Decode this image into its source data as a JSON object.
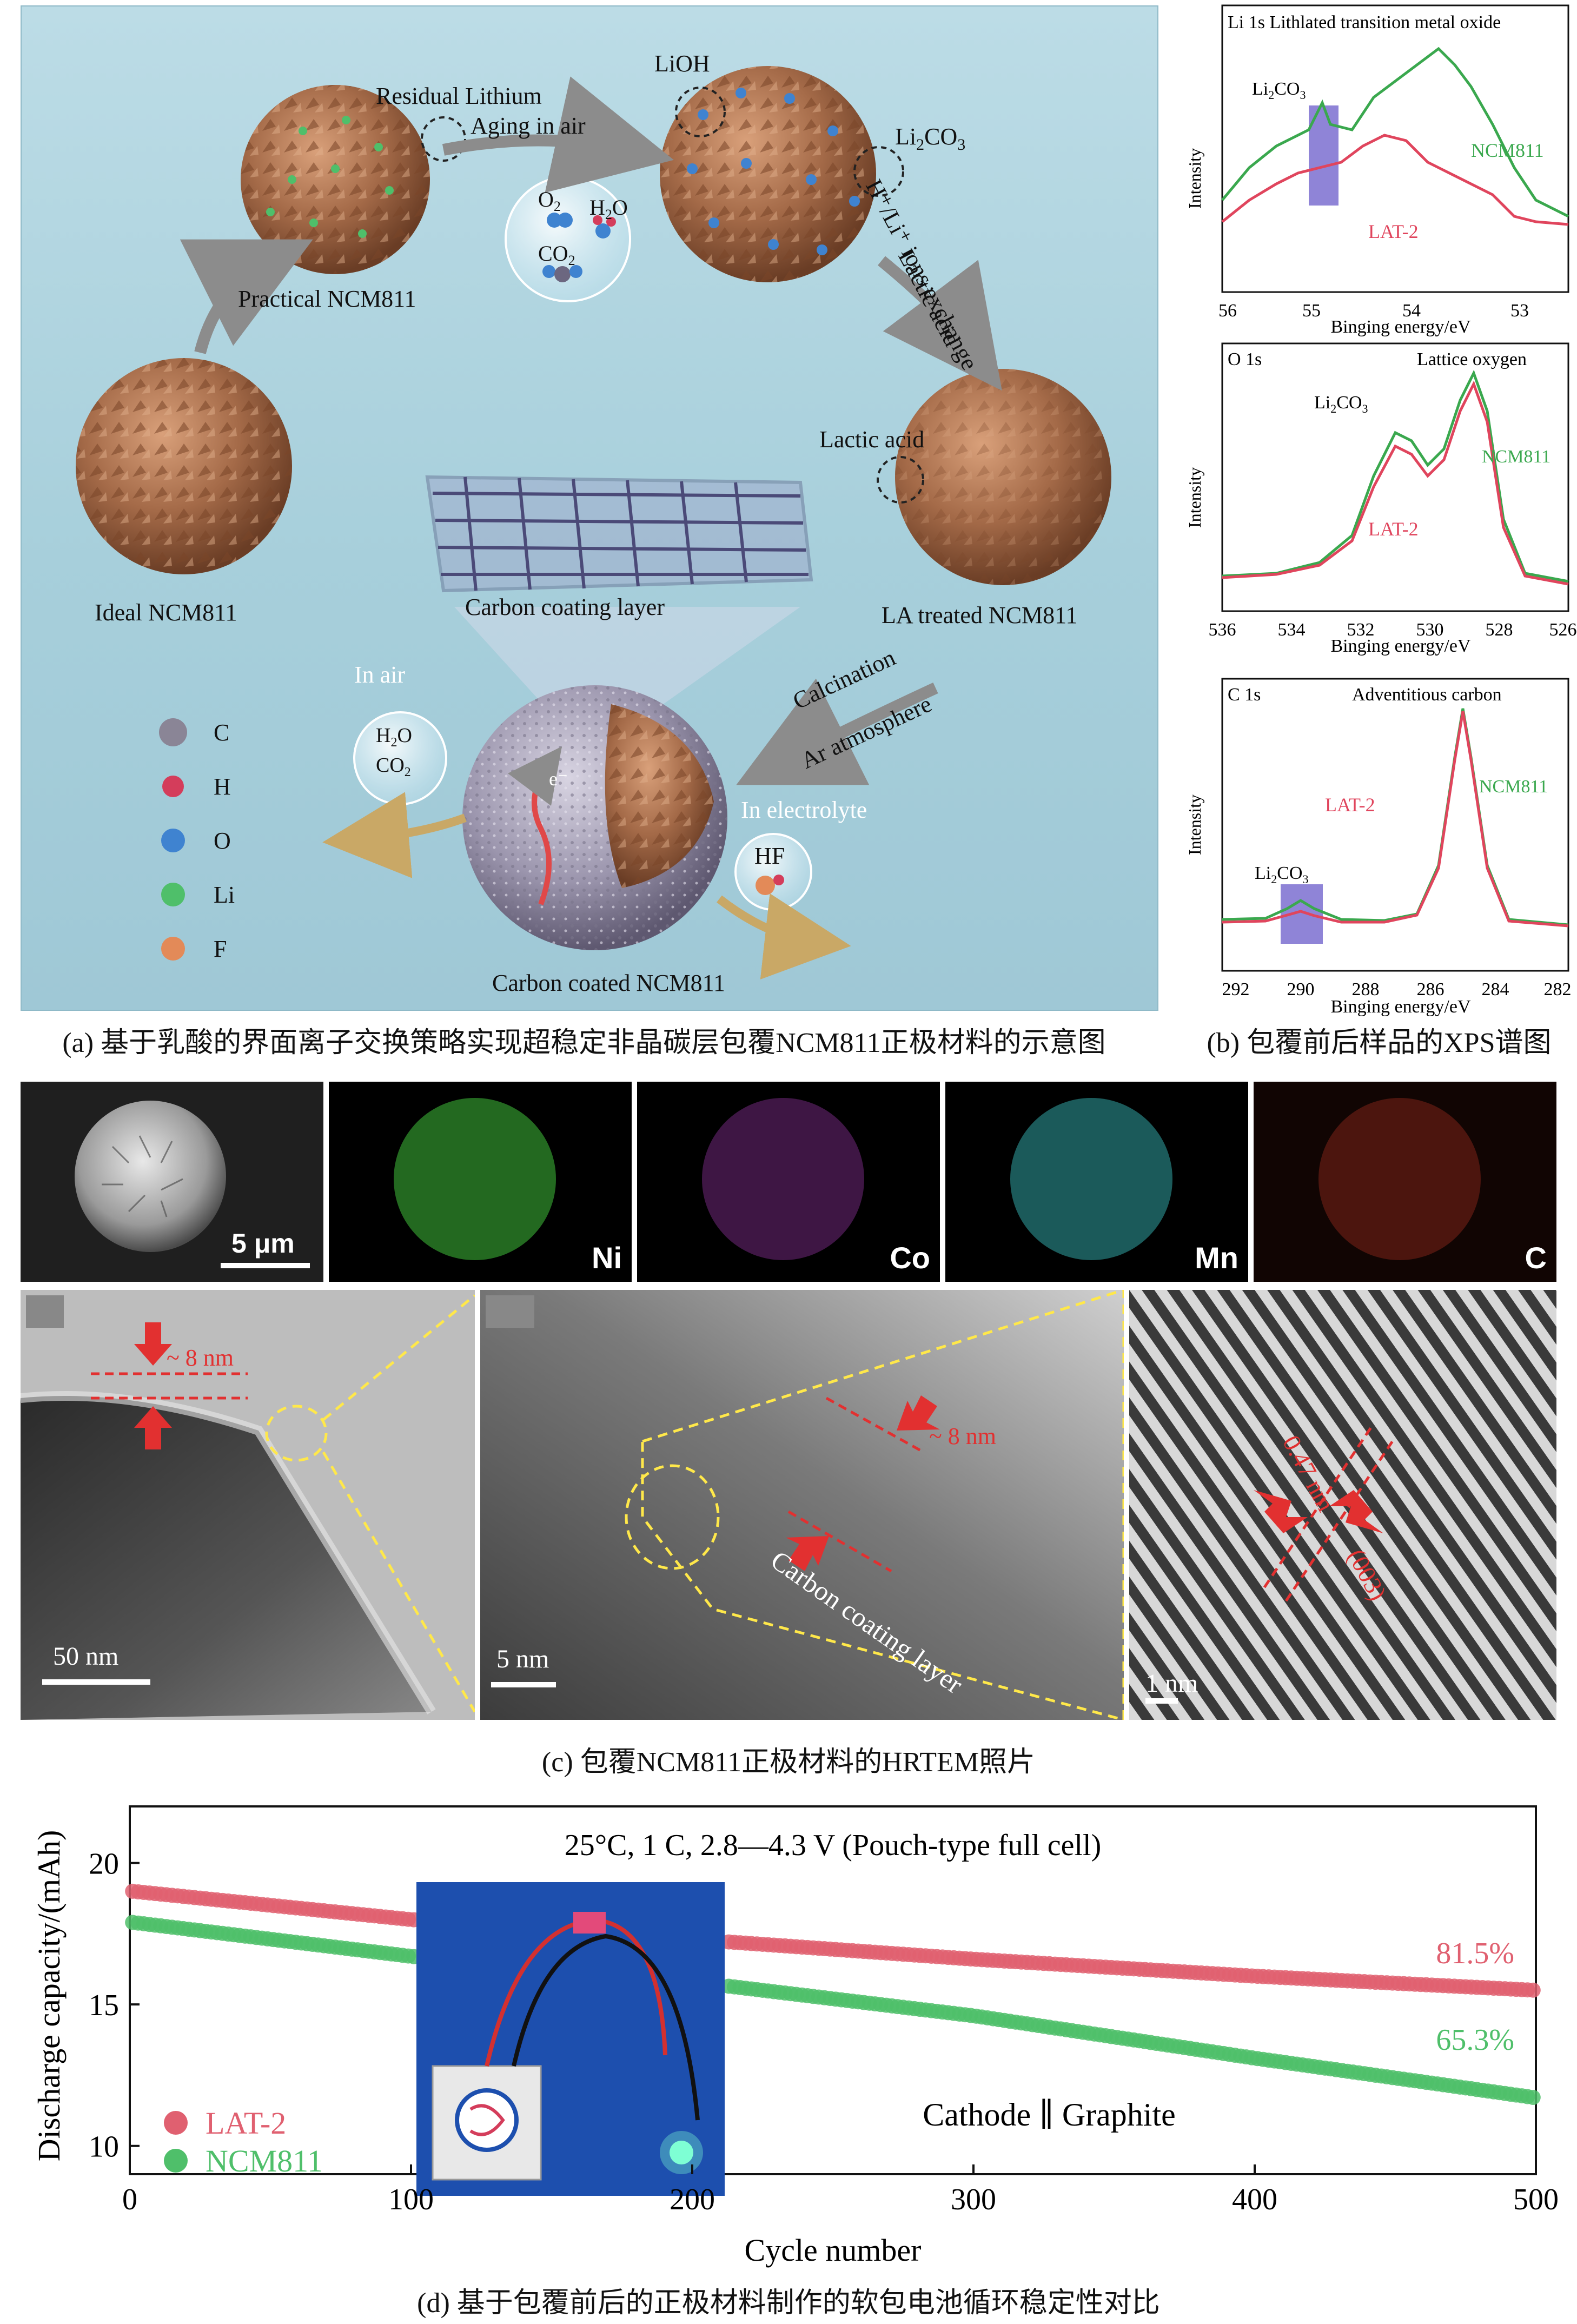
{
  "panel_a": {
    "labels": {
      "residual_lithium": "Residual Lithium",
      "aging": "Aging in air",
      "lioh": "LiOH",
      "li2co3_main": "Li",
      "li2co3_sub": "2",
      "li2co3_end": "CO",
      "li2co3_sub2": "3",
      "ion_exchange": "H⁺/Li⁺ ions exchange",
      "lactic": "Lactic acid",
      "practical": "Practical NCM811",
      "ideal": "Ideal NCM811",
      "lactic_acid": "Lactic acid",
      "la_treated": "LA treated NCM811",
      "carbon_layer": "Carbon coating layer",
      "calcination": "Calcination",
      "ar": "Ar atmosphere",
      "in_air": "In air",
      "in_electrolyte": "In electrolyte",
      "hf": "HF",
      "carbon_coated": "Carbon coated NCM811",
      "electron": "e⁻"
    },
    "gas_bubble": [
      "O",
      "2",
      "H",
      "2",
      "O",
      "CO",
      "2"
    ],
    "legend": [
      {
        "label": "C",
        "color": "#8a8596"
      },
      {
        "label": "H",
        "color": "#d43d5b"
      },
      {
        "label": "O",
        "color": "#3f83d0"
      },
      {
        "label": "Li",
        "color": "#4fbf6a"
      },
      {
        "label": "F",
        "color": "#e38a58"
      }
    ],
    "caption": "(a) 基于乳酸的界面离子交换策略实现超稳定非晶碳层包覆NCM811正极材料的示意图"
  },
  "panel_b": {
    "caption": "(b) 包覆前后样品的XPS谱图",
    "ylabel": "Intensity",
    "xlabel": "Binging energy/eV",
    "colors": {
      "NCM811": "#3aa84e",
      "LAT-2": "#e0455d",
      "highlight": "#7b6fd0"
    },
    "charts": [
      {
        "title": "Li 1s  Lithlated transition metal oxide",
        "ticks": [
          "56",
          "55",
          "54",
          "53"
        ],
        "annot": "Li",
        "annot_sub": "2",
        "annot_end": "CO",
        "annot_sub2": "3",
        "ncm": "NCM811",
        "lat": "LAT-2"
      },
      {
        "title": "O 1s",
        "peak_label": "Lattice oxygen",
        "ticks": [
          "536",
          "534",
          "532",
          "530",
          "528",
          "526"
        ],
        "annot": "Li",
        "annot_sub": "2",
        "annot_end": "CO",
        "annot_sub2": "3",
        "ncm": "NCM811",
        "lat": "LAT-2"
      },
      {
        "title": "C 1s",
        "peak_label": "Adventitious carbon",
        "ticks": [
          "292",
          "290",
          "288",
          "286",
          "284",
          "282"
        ],
        "annot": "Li",
        "annot_sub": "2",
        "annot_end": "CO",
        "annot_sub2": "3",
        "ncm": "NCM811",
        "lat": "LAT-2"
      }
    ]
  },
  "panel_c": {
    "caption": "(c) 包覆NCM811正极材料的HRTEM照片",
    "sem_scale": "5 μm",
    "maps": [
      {
        "label": "Ni",
        "color": "#3fbf3a"
      },
      {
        "label": "Co",
        "color": "#b13ec4"
      },
      {
        "label": "Mn",
        "color": "#3cc8c8"
      },
      {
        "label": "C",
        "color": "#d33a2a"
      }
    ],
    "tem1_scale": "50 nm",
    "tem1_thickness": "~ 8 nm",
    "tem2_scale": "5 nm",
    "tem2_thickness": "~ 8 nm",
    "tem2_layer": "Carbon coating layer",
    "tem3_scale": "1 nm",
    "tem3_spacing": "0.47 nm",
    "tem3_plane": "(003)"
  },
  "panel_d": {
    "caption": "(d) 基于包覆前后的正极材料制作的软包电池循环稳定性对比",
    "chart_data": {
      "type": "scatter",
      "title": "25°C, 1 C, 2.8—4.3 V (Pouch-type full cell)",
      "xlabel": "Cycle number",
      "ylabel": "Discharge capacity/(mAh)",
      "xlim": [
        0,
        500
      ],
      "ylim": [
        9,
        22
      ],
      "xticks": [
        "0",
        "100",
        "200",
        "300",
        "400",
        "500"
      ],
      "yticks": [
        "10",
        "15",
        "20"
      ],
      "series": [
        {
          "name": "LAT-2",
          "color": "#e06070",
          "x": [
            1,
            100,
            200,
            300,
            400,
            500
          ],
          "y": [
            19.0,
            18.0,
            17.3,
            16.6,
            16.0,
            15.5
          ],
          "retention": "81.5%"
        },
        {
          "name": "NCM811",
          "color": "#4fbf6a",
          "x": [
            1,
            100,
            200,
            300,
            400,
            500
          ],
          "y": [
            17.9,
            16.7,
            15.8,
            14.6,
            13.1,
            11.7
          ],
          "retention": "65.3%"
        }
      ],
      "annotation": "Cathode ∥ Graphite"
    }
  }
}
